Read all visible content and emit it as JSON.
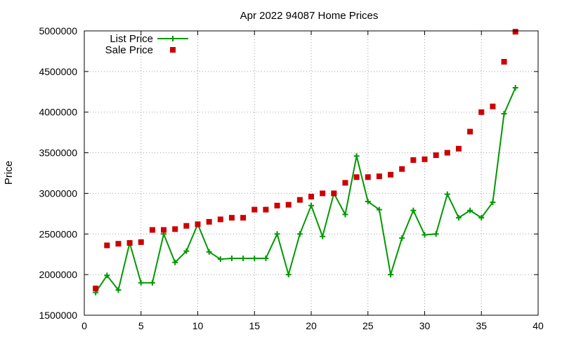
{
  "chart_data": {
    "type": "line",
    "title": "Apr 2022 94087 Home Prices",
    "xlabel": "",
    "ylabel": "Price",
    "xlim": [
      0,
      40
    ],
    "ylim": [
      1500000,
      5000000
    ],
    "x_ticks": [
      0,
      5,
      10,
      15,
      20,
      25,
      30,
      35,
      40
    ],
    "y_ticks": [
      1500000,
      2000000,
      2500000,
      3000000,
      3500000,
      4000000,
      4500000,
      5000000
    ],
    "grid": true,
    "legend_position": "top-left",
    "series": [
      {
        "name": "List Price",
        "style": "line-plus",
        "color": "#009900",
        "x": [
          1,
          2,
          3,
          4,
          5,
          6,
          7,
          8,
          9,
          10,
          11,
          12,
          13,
          14,
          15,
          16,
          17,
          18,
          19,
          20,
          21,
          22,
          23,
          24,
          25,
          26,
          27,
          28,
          29,
          30,
          31,
          32,
          33,
          34,
          35,
          36,
          37,
          38
        ],
        "y": [
          1780000,
          1990000,
          1810000,
          2390000,
          1900000,
          1900000,
          2500000,
          2150000,
          2290000,
          2620000,
          2280000,
          2190000,
          2200000,
          2200000,
          2200000,
          2200000,
          2500000,
          2000000,
          2500000,
          2850000,
          2470000,
          3000000,
          2740000,
          3460000,
          2900000,
          2800000,
          2000000,
          2450000,
          2790000,
          2490000,
          2500000,
          2990000,
          2700000,
          2790000,
          2700000,
          2890000,
          3980000,
          4300000
        ]
      },
      {
        "name": "Sale Price",
        "style": "points-square",
        "color": "#cc0000",
        "x": [
          1,
          2,
          3,
          4,
          5,
          6,
          7,
          8,
          9,
          10,
          11,
          12,
          13,
          14,
          15,
          16,
          17,
          18,
          19,
          20,
          21,
          22,
          23,
          24,
          25,
          26,
          27,
          28,
          29,
          30,
          31,
          32,
          33,
          34,
          35,
          36,
          37,
          38
        ],
        "y": [
          1830000,
          2360000,
          2380000,
          2390000,
          2400000,
          2550000,
          2550000,
          2560000,
          2600000,
          2620000,
          2650000,
          2680000,
          2700000,
          2700000,
          2800000,
          2800000,
          2850000,
          2860000,
          2920000,
          2960000,
          3000000,
          3000000,
          3130000,
          3200000,
          3200000,
          3210000,
          3230000,
          3300000,
          3410000,
          3420000,
          3470000,
          3500000,
          3550000,
          3760000,
          4000000,
          4070000,
          4620000,
          4990000
        ]
      }
    ]
  }
}
